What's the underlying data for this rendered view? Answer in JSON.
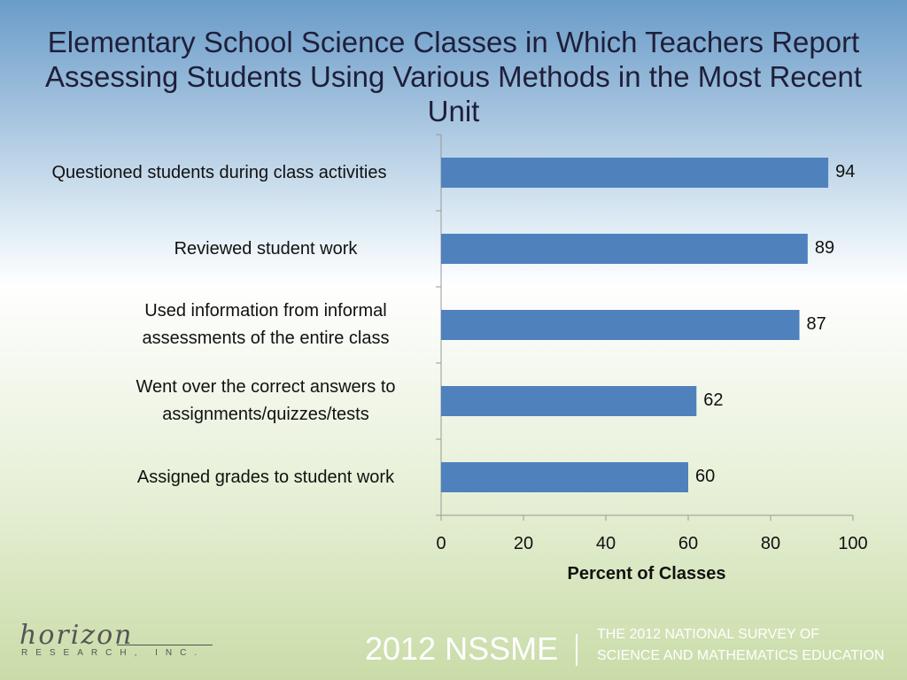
{
  "chart_data": {
    "type": "bar",
    "orientation": "horizontal",
    "title": "Elementary School Science Classes in Which Teachers Report Assessing Students Using Various Methods in the Most Recent Unit",
    "categories": [
      "Questioned students during class activities",
      "Reviewed student work",
      "Used information from informal assessments of the entire class",
      "Went over the correct answers to assignments/quizzes/tests",
      "Assigned grades to student work"
    ],
    "values": [
      94,
      89,
      87,
      62,
      60
    ],
    "value_labels": [
      "94",
      "89",
      "87",
      "62",
      "60"
    ],
    "xlabel": "Percent of Classes",
    "ylabel": "",
    "xlim": [
      0,
      100
    ],
    "x_ticks": [
      "0",
      "20",
      "40",
      "60",
      "80",
      "100"
    ],
    "bar_color": "#4f81bd",
    "grid": false
  },
  "footer": {
    "logo_script": "horizon",
    "logo_sub": "RESEARCH, INC.",
    "survey_short": "2012 NSSME",
    "survey_line1": "THE 2012 NATIONAL SURVEY OF",
    "survey_line2": "SCIENCE AND MATHEMATICS EDUCATION"
  }
}
